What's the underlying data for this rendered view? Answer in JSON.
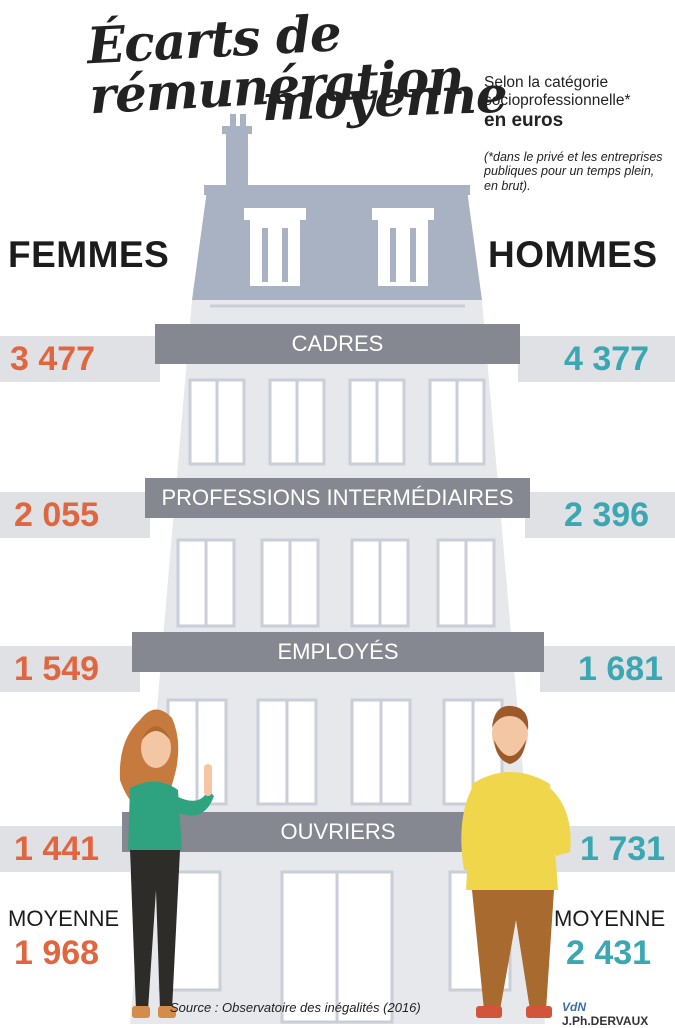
{
  "title": {
    "line1": "Écarts de rémunération",
    "line2": "moyenne"
  },
  "subtitle": {
    "line1": "Selon la catégorie",
    "line2": "socioprofessionnelle*",
    "unit": "en euros"
  },
  "note": "(*dans le privé et les entreprises publiques pour un temps plein, en brut).",
  "headers": {
    "women": "FEMMES",
    "men": "HOMMES"
  },
  "categories": [
    {
      "label": "CADRES",
      "women": "3 477",
      "men": "4 377"
    },
    {
      "label": "PROFESSIONS INTERMÉDIAIRES",
      "women": "2 055",
      "men": "2 396"
    },
    {
      "label": "EMPLOYÉS",
      "women": "1 549",
      "men": "1 681"
    },
    {
      "label": "OUVRIERS",
      "women": "1 441",
      "men": "1 731"
    }
  ],
  "average": {
    "label": "MOYENNE",
    "women": "1 968",
    "men": "2 431"
  },
  "source": "Source : Observatoire des inégalités (2016)",
  "credit": {
    "logo": "VdN",
    "author": "J.Ph.DERVAUX"
  },
  "colors": {
    "women": "#e0663f",
    "men": "#3aa7b2",
    "banner": "#858891",
    "band": "#dfe1e5",
    "building": "#e6e8ec",
    "roof": "#a9b2c2"
  }
}
